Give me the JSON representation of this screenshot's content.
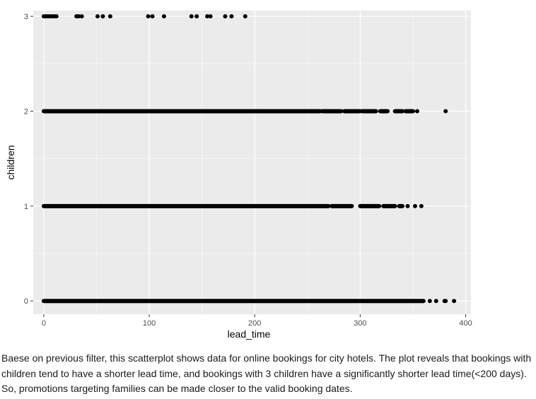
{
  "chart_data": {
    "type": "scatter",
    "title": "",
    "xlabel": "lead_time",
    "ylabel": "children",
    "xlim": [
      -10,
      405
    ],
    "ylim": [
      -0.14,
      3.06
    ],
    "xticks": [
      0,
      100,
      200,
      300,
      400
    ],
    "yticks": [
      0,
      1,
      2,
      3
    ],
    "xtick_labels": [
      "0",
      "100",
      "200",
      "300",
      "400"
    ],
    "ytick_labels": [
      "0",
      "1",
      "2",
      "3"
    ],
    "grid": true,
    "legend": "none",
    "colors": {
      "panel": "#ebebeb",
      "grid": "#ffffff",
      "point": "#000000",
      "axis_text": "#4d4d4d"
    },
    "series": [
      {
        "y": 3,
        "x": [
          0,
          2,
          4,
          6,
          8,
          10,
          12,
          31,
          33,
          36,
          51,
          56,
          63,
          99,
          103,
          114,
          140,
          145,
          155,
          158,
          172,
          178,
          191
        ],
        "dense_ranges": []
      },
      {
        "y": 2,
        "x": [
          354,
          381
        ],
        "dense_ranges": [
          [
            0,
            262
          ],
          [
            264,
            282
          ],
          [
            285,
            300
          ],
          [
            302,
            315
          ],
          [
            319,
            326
          ],
          [
            333,
            340
          ],
          [
            343,
            350
          ]
        ]
      },
      {
        "y": 1,
        "x": [
          345,
          352,
          358
        ],
        "dense_ranges": [
          [
            0,
            270
          ],
          [
            273,
            292
          ],
          [
            300,
            318
          ],
          [
            322,
            333
          ],
          [
            337,
            340
          ]
        ]
      },
      {
        "y": 0,
        "x": [
          366,
          372,
          380,
          381,
          389
        ],
        "dense_ranges": [
          [
            0,
            360
          ]
        ]
      }
    ]
  },
  "caption": {
    "lines": [
      "Baese on previous filter, this scatterplot shows data for online bookings for city hotels. The plot reveals that bookings with",
      "children tend to have a shorter lead time, and bookings with 3 children have a significantly shorter lead time(<200 days).",
      "So, promotions targeting families can be made closer to the valid booking dates."
    ]
  }
}
